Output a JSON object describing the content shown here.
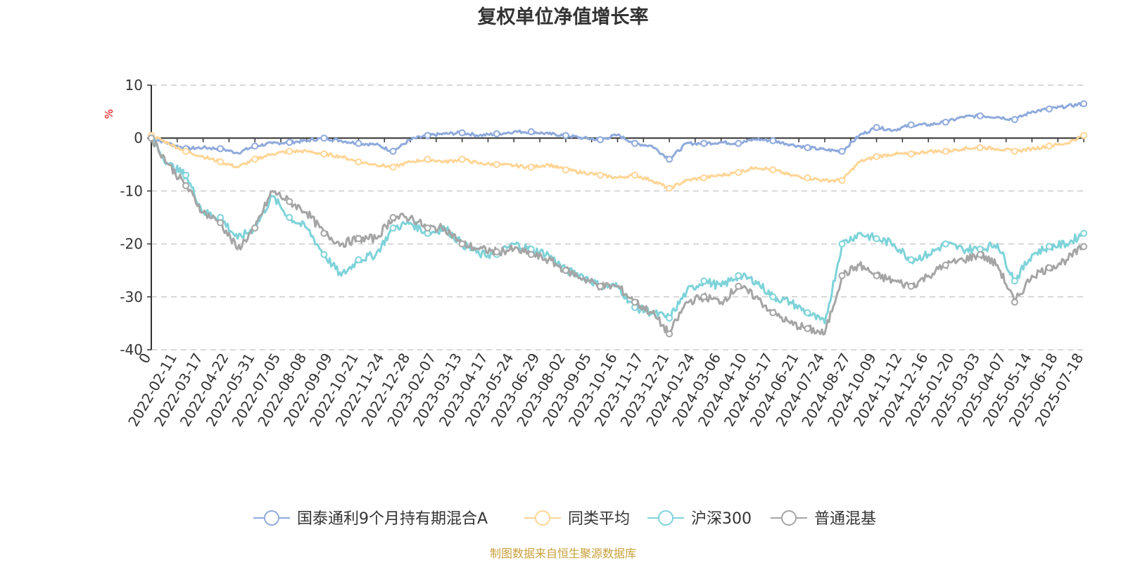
{
  "chart_data": {
    "type": "line",
    "title": "复权单位净值增长率",
    "y_unit": "%",
    "ylim": [
      -40,
      10
    ],
    "y_ticks": [
      10,
      0,
      -10,
      -20,
      -30,
      -40
    ],
    "x_tick_labels": [
      "0",
      "2022-02-11",
      "2022-03-17",
      "2022-04-22",
      "2022-05-31",
      "2022-07-05",
      "2022-08-08",
      "2022-09-09",
      "2022-10-21",
      "2022-11-24",
      "2022-12-28",
      "2023-02-07",
      "2023-03-13",
      "2023-04-17",
      "2023-05-24",
      "2023-06-29",
      "2023-08-02",
      "2023-09-05",
      "2023-10-16",
      "2023-11-17",
      "2023-12-21",
      "2024-01-24",
      "2024-03-06",
      "2024-04-10",
      "2024-05-17",
      "2024-06-21",
      "2024-07-24",
      "2024-08-27",
      "2024-10-09",
      "2024-11-12",
      "2024-12-16",
      "2025-01-20",
      "2025-03-03",
      "2025-04-07",
      "2025-05-14",
      "2025-06-18",
      "2025-07-18"
    ],
    "grid": true,
    "legend_position": "bottom",
    "series": [
      {
        "name": "国泰通利9个月持有期混合A",
        "color": "#8faadc",
        "values": [
          0,
          -1,
          -2,
          -1.8,
          -2,
          -2.8,
          -1.5,
          -1,
          -0.8,
          -0.5,
          0,
          -0.5,
          -1,
          -1.2,
          -2.5,
          -0.3,
          0.5,
          0.8,
          1,
          0.5,
          0.8,
          1.2,
          1.2,
          0.8,
          0.5,
          0,
          -0.3,
          0.6,
          -1,
          -1.5,
          -4,
          -1,
          -1,
          -0.8,
          -1,
          -0.2,
          -0.5,
          -1.2,
          -1.8,
          -2.2,
          -2.5,
          0.5,
          2,
          1.5,
          2.5,
          2.5,
          3,
          4,
          4.2,
          4,
          3.5,
          5,
          5.5,
          6,
          6.5
        ]
      },
      {
        "name": "同类平均",
        "color": "#ffd596",
        "values": [
          0.5,
          -1,
          -2.5,
          -3.5,
          -4.5,
          -5.5,
          -4,
          -3,
          -2.5,
          -2.5,
          -3,
          -3.5,
          -4.5,
          -5,
          -5.5,
          -4.5,
          -4,
          -4.5,
          -4,
          -4.8,
          -5,
          -5.2,
          -5.5,
          -5,
          -6,
          -6.5,
          -7,
          -7.5,
          -7,
          -8,
          -9.5,
          -8,
          -7.5,
          -7,
          -6.5,
          -5.5,
          -6,
          -7,
          -7.5,
          -8,
          -8,
          -4.5,
          -3.5,
          -3,
          -3,
          -2.5,
          -2.5,
          -2,
          -1.8,
          -2,
          -2.5,
          -2,
          -1.5,
          -1,
          0.5
        ]
      },
      {
        "name": "沪深300",
        "color": "#7ed3d9",
        "values": [
          0,
          -5,
          -7,
          -14,
          -15,
          -19,
          -17,
          -11,
          -15,
          -17,
          -22,
          -26,
          -23,
          -22,
          -17,
          -16,
          -18,
          -17,
          -20,
          -22,
          -22,
          -20,
          -21,
          -22,
          -25,
          -26,
          -28,
          -28,
          -32,
          -33,
          -34,
          -29,
          -27,
          -28,
          -26,
          -27,
          -30,
          -31,
          -33,
          -35,
          -20,
          -18,
          -19,
          -20,
          -23,
          -22,
          -20,
          -21,
          -21,
          -20,
          -27,
          -22,
          -20.5,
          -20,
          -18
        ]
      },
      {
        "name": "普通混基",
        "color": "#a5a5a5",
        "values": [
          0,
          -5,
          -9,
          -14,
          -16,
          -21,
          -17,
          -10,
          -12,
          -14,
          -18,
          -20,
          -19,
          -19,
          -15,
          -15,
          -17,
          -17,
          -20,
          -21,
          -21.5,
          -21,
          -22,
          -23,
          -25,
          -26.5,
          -28,
          -28,
          -31,
          -33,
          -37,
          -31,
          -30,
          -31,
          -28,
          -30,
          -33,
          -35,
          -36,
          -37,
          -26,
          -24,
          -26,
          -27,
          -28,
          -26,
          -24,
          -23,
          -22,
          -24,
          -31,
          -26,
          -24.5,
          -23,
          -20.5
        ]
      }
    ]
  },
  "source_text": "制图数据来自恒生聚源数据库"
}
